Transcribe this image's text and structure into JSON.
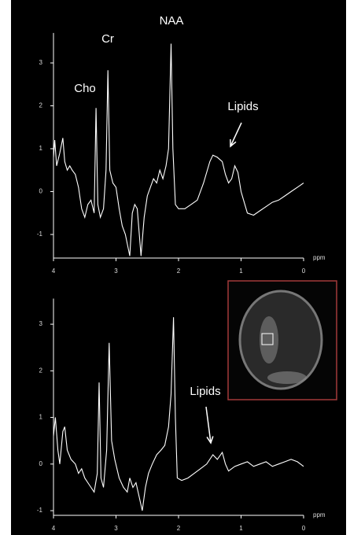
{
  "chart_data": [
    {
      "type": "line",
      "x_label": "ppm",
      "annotations": [
        "Cho",
        "Cr",
        "NAA",
        "Lipids"
      ],
      "xlim": [
        4,
        0
      ],
      "xticks": [
        4,
        3,
        2,
        1,
        0
      ],
      "ylim": [
        -1.55,
        3.7
      ],
      "yticks": [
        -1,
        0,
        1,
        2,
        3
      ],
      "series": [
        {
          "color": "#ffffff",
          "x": [
            4.0,
            3.98,
            3.95,
            3.9,
            3.85,
            3.82,
            3.78,
            3.74,
            3.7,
            3.65,
            3.6,
            3.55,
            3.5,
            3.45,
            3.4,
            3.35,
            3.32,
            3.29,
            3.25,
            3.2,
            3.16,
            3.13,
            3.1,
            3.05,
            3.0,
            2.95,
            2.9,
            2.85,
            2.78,
            2.74,
            2.7,
            2.66,
            2.6,
            2.55,
            2.5,
            2.45,
            2.4,
            2.35,
            2.3,
            2.25,
            2.2,
            2.16,
            2.12,
            2.09,
            2.05,
            2.0,
            1.9,
            1.8,
            1.7,
            1.6,
            1.5,
            1.45,
            1.38,
            1.3,
            1.25,
            1.2,
            1.15,
            1.1,
            1.05,
            1.0,
            0.9,
            0.8,
            0.7,
            0.6,
            0.5,
            0.4,
            0.3,
            0.2,
            0.1,
            0.0
          ],
          "values": [
            0.8,
            1.2,
            0.6,
            0.9,
            1.25,
            0.7,
            0.5,
            0.6,
            0.5,
            0.4,
            0.1,
            -0.4,
            -0.6,
            -0.3,
            -0.2,
            -0.5,
            1.95,
            -0.3,
            -0.6,
            -0.4,
            0.5,
            2.83,
            0.5,
            0.2,
            0.1,
            -0.4,
            -0.8,
            -1.0,
            -1.5,
            -0.5,
            -0.3,
            -0.4,
            -1.5,
            -0.6,
            -0.1,
            0.1,
            0.3,
            0.2,
            0.5,
            0.3,
            0.6,
            1.0,
            3.45,
            1.0,
            -0.3,
            -0.4,
            -0.4,
            -0.3,
            -0.2,
            0.2,
            0.7,
            0.85,
            0.8,
            0.7,
            0.4,
            0.2,
            0.3,
            0.6,
            0.45,
            0.0,
            -0.5,
            -0.55,
            -0.45,
            -0.35,
            -0.25,
            -0.2,
            -0.1,
            0.0,
            0.1,
            0.2
          ]
        }
      ]
    },
    {
      "type": "line",
      "x_label": "ppm",
      "annotations": [
        "Lipids"
      ],
      "xlim": [
        4,
        0
      ],
      "xticks": [
        4,
        3,
        2,
        1,
        0
      ],
      "ylim": [
        -1.1,
        3.55
      ],
      "yticks": [
        -1,
        0,
        1,
        2,
        3
      ],
      "series": [
        {
          "color": "#ffffff",
          "x": [
            4.0,
            3.97,
            3.93,
            3.9,
            3.85,
            3.82,
            3.78,
            3.72,
            3.65,
            3.6,
            3.55,
            3.5,
            3.45,
            3.4,
            3.35,
            3.3,
            3.27,
            3.24,
            3.2,
            3.15,
            3.11,
            3.07,
            3.02,
            2.95,
            2.88,
            2.82,
            2.78,
            2.73,
            2.68,
            2.63,
            2.58,
            2.53,
            2.48,
            2.42,
            2.35,
            2.28,
            2.22,
            2.16,
            2.12,
            2.08,
            2.05,
            2.02,
            1.95,
            1.85,
            1.75,
            1.65,
            1.55,
            1.45,
            1.38,
            1.3,
            1.25,
            1.2,
            1.1,
            1.0,
            0.9,
            0.8,
            0.7,
            0.6,
            0.5,
            0.4,
            0.3,
            0.2,
            0.1,
            0.0
          ],
          "values": [
            0.6,
            1.0,
            0.3,
            0.0,
            0.7,
            0.8,
            0.3,
            0.1,
            0.0,
            -0.2,
            -0.1,
            -0.3,
            -0.4,
            -0.5,
            -0.6,
            -0.2,
            1.75,
            -0.3,
            -0.5,
            0.3,
            2.6,
            0.5,
            0.1,
            -0.3,
            -0.5,
            -0.6,
            -0.3,
            -0.5,
            -0.4,
            -0.7,
            -1.0,
            -0.5,
            -0.2,
            0.0,
            0.2,
            0.3,
            0.4,
            0.8,
            1.5,
            3.15,
            1.0,
            -0.3,
            -0.35,
            -0.3,
            -0.2,
            -0.1,
            0.0,
            0.2,
            0.1,
            0.25,
            0.0,
            -0.15,
            -0.05,
            0.0,
            0.05,
            -0.05,
            0.0,
            0.05,
            -0.05,
            0.0,
            0.05,
            0.1,
            0.05,
            -0.05
          ]
        }
      ]
    }
  ]
}
